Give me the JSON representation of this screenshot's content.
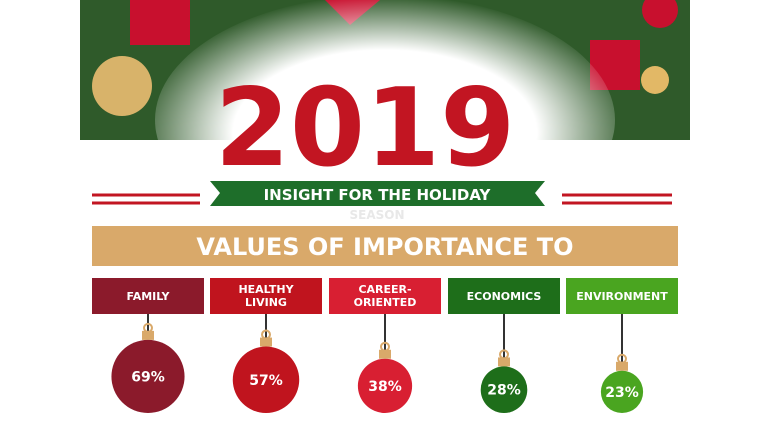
{
  "chart_data": {
    "type": "ornament",
    "title": "2019",
    "subtitle": "INSIGHT FOR THE HOLIDAY",
    "subtitle_extra": "SEASON",
    "heading": "VALUES OF IMPORTANCE TO",
    "categories": [
      "FAMILY",
      "HEALTHY LIVING",
      "CAREER-ORIENTED",
      "ECONOMICS",
      "ENVIRONMENT"
    ],
    "values": [
      69,
      57,
      38,
      28,
      23
    ],
    "value_labels": [
      "69%",
      "57%",
      "38%",
      "28%",
      "23%"
    ],
    "colors": [
      "#8b1a2b",
      "#c0141e",
      "#d81f32",
      "#1e6e1a",
      "#4aa520"
    ]
  }
}
